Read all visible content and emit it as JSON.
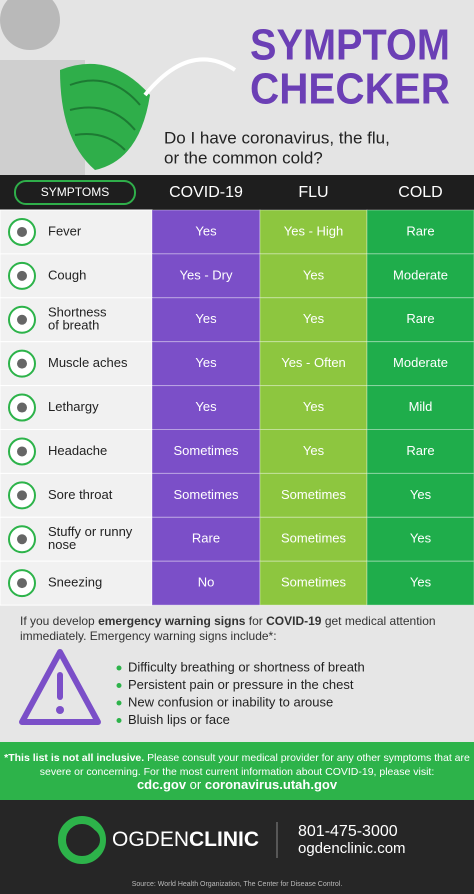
{
  "header": {
    "title": [
      "SYMPTOM",
      "CHECKER"
    ],
    "subtitle": [
      "Do I have coronavirus, the flu,",
      "or the common cold?"
    ]
  },
  "table": {
    "columns": [
      "SYMPTOMS",
      "COVID-19",
      "FLU",
      "COLD"
    ],
    "rows": [
      {
        "symptom": [
          "Fever"
        ],
        "cells": [
          "Yes",
          "Yes - High",
          "Rare"
        ]
      },
      {
        "symptom": [
          "Cough"
        ],
        "cells": [
          "Yes - Dry",
          "Yes",
          "Moderate"
        ]
      },
      {
        "symptom": [
          "Shortness",
          "of breath"
        ],
        "cells": [
          "Yes",
          "Yes",
          "Rare"
        ]
      },
      {
        "symptom": [
          "Muscle aches"
        ],
        "cells": [
          "Yes",
          "Yes - Often",
          "Moderate"
        ]
      },
      {
        "symptom": [
          "Lethargy"
        ],
        "cells": [
          "Yes",
          "Yes",
          "Mild"
        ]
      },
      {
        "symptom": [
          "Headache"
        ],
        "cells": [
          "Sometimes",
          "Yes",
          "Rare"
        ]
      },
      {
        "symptom": [
          "Sore throat"
        ],
        "cells": [
          "Sometimes",
          "Sometimes",
          "Yes"
        ]
      },
      {
        "symptom": [
          "Stuffy or runny",
          "nose"
        ],
        "cells": [
          "Rare",
          "Sometimes",
          "Yes"
        ]
      },
      {
        "symptom": [
          "Sneezing"
        ],
        "cells": [
          "No",
          "Sometimes",
          "Yes"
        ]
      }
    ]
  },
  "warning": {
    "intro": [
      [
        {
          "text": "If you develop "
        },
        {
          "text": "emergency warning signs",
          "bold": true
        },
        {
          "text": " for "
        },
        {
          "text": "COVID-19",
          "bold": true
        },
        {
          "text": " get medical attention"
        }
      ],
      [
        {
          "text": "immediately. Emergency warning signs include*:"
        }
      ]
    ],
    "items": [
      "Difficulty breathing or shortness of breath",
      "Persistent pain or pressure in the chest",
      "New confusion or inability to arouse",
      "Bluish lips or face"
    ]
  },
  "footnote": [
    [
      {
        "text": "*This list is not all inclusive.",
        "bold": true
      },
      {
        "text": " Please consult your medical provider for any other symptoms that are"
      }
    ],
    [
      {
        "text": "severe or concerning. For the most current information about COVID-19, please visit:"
      }
    ],
    [
      {
        "text": "cdc.gov",
        "bold": true
      },
      {
        "text": " or "
      },
      {
        "text": "coronavirus.utah.gov",
        "bold": true
      }
    ]
  ],
  "footer": {
    "logo": [
      "OGDEN",
      "CLINIC"
    ],
    "phone": "801-475-3000",
    "website": "ogdenclinic.com",
    "source": "Source: World Health Organization, The Center for Disease Control."
  }
}
